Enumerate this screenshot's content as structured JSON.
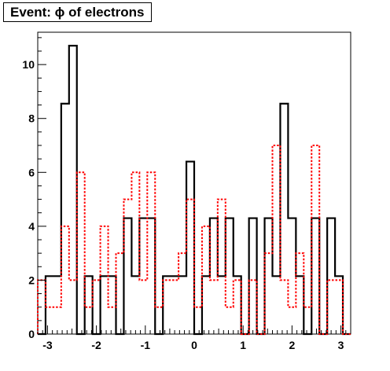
{
  "chart_data": {
    "type": "line",
    "title": "Event: ϕ of electrons",
    "xlabel": "",
    "ylabel": "",
    "xlim": [
      -3.2,
      3.2
    ],
    "ylim": [
      0,
      11.2
    ],
    "x_ticks": [
      -3,
      -2,
      -1,
      0,
      1,
      2,
      3
    ],
    "y_ticks": [
      0,
      2,
      4,
      6,
      8,
      10
    ],
    "grid": false,
    "bin_edges": [
      -3.2,
      -3.04,
      -2.88,
      -2.72,
      -2.56,
      -2.4,
      -2.24,
      -2.08,
      -1.92,
      -1.76,
      -1.6,
      -1.44,
      -1.28,
      -1.12,
      -0.96,
      -0.8,
      -0.64,
      -0.48,
      -0.32,
      -0.16,
      0.0,
      0.16,
      0.32,
      0.48,
      0.64,
      0.8,
      0.96,
      1.12,
      1.28,
      1.44,
      1.6,
      1.76,
      1.92,
      2.08,
      2.24,
      2.4,
      2.56,
      2.72,
      2.88,
      3.04,
      3.2
    ],
    "series": [
      {
        "style": "solid",
        "color": "#000000",
        "values": [
          0,
          2.15,
          2.15,
          8.55,
          10.7,
          0,
          2.15,
          0,
          2.15,
          2.15,
          0,
          4.3,
          2.15,
          4.3,
          4.3,
          0,
          2.15,
          2.15,
          2.15,
          6.4,
          0,
          2.15,
          4.3,
          2.15,
          4.3,
          2.15,
          0,
          4.3,
          0,
          4.3,
          2.15,
          8.55,
          4.3,
          2.15,
          0,
          4.3,
          0,
          4.3,
          2.15,
          0
        ]
      },
      {
        "style": "dotted",
        "color": "#ff0000",
        "values": [
          2,
          1,
          1,
          4,
          2,
          6,
          1,
          2,
          4,
          1,
          3,
          5,
          6,
          2,
          6,
          1,
          2,
          2,
          3,
          5,
          1,
          4,
          2,
          5,
          1,
          2,
          0,
          2,
          0,
          3,
          7,
          2,
          1,
          3,
          1,
          7,
          0,
          2,
          2,
          0
        ]
      }
    ]
  }
}
